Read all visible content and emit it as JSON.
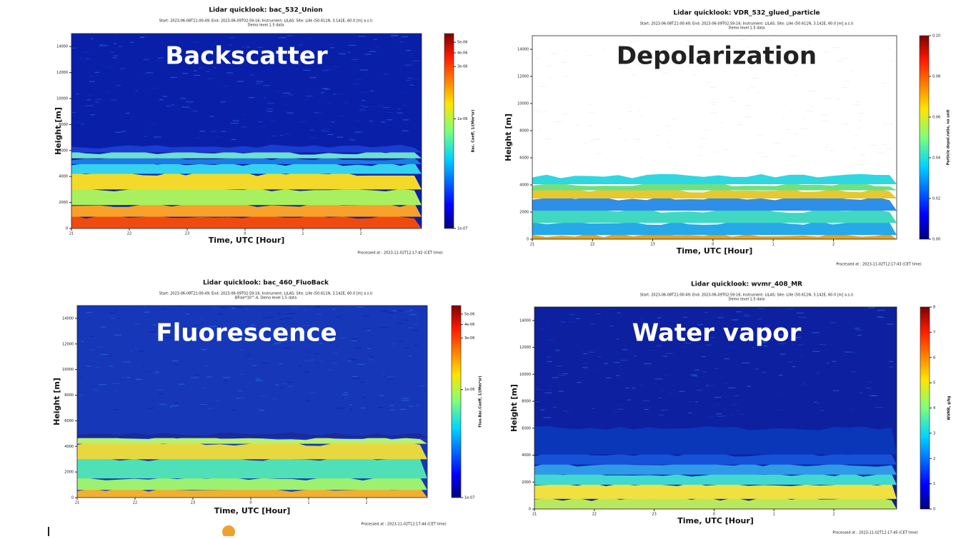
{
  "chart_data": [
    {
      "type": "heatmap",
      "title": "Lidar quicklook: bac_532_Union",
      "subtitle": [
        "Start: 2023-06-08T21:00:49; End: 2023-06-09T02:59:16; Instrument: LILAS; Site: Lille (50.611N, 3.142E, 60.0 [m] a.s.l)",
        "Demo level 1.5 data"
      ],
      "overlay": "Backscatter",
      "x_label": "Time, UTC [Hour]",
      "y_label": "Height [m]",
      "colorbar_label": "Bac. Coeff, 1/(Mm*sr)",
      "categories": [
        "21",
        "22",
        "23",
        "0",
        "1",
        "2"
      ],
      "ylim": [
        0,
        15000
      ],
      "yticks": [
        0,
        2000,
        4000,
        6000,
        8000,
        10000,
        12000,
        14000
      ],
      "clim": [
        1e-07,
        6e-06
      ],
      "cscale": "log",
      "cticks": [
        {
          "value": 1e-07,
          "label": "1e-07"
        },
        {
          "value": 1e-06,
          "label": "1e-06"
        },
        {
          "value": 3e-06,
          "label": "3e-06"
        },
        {
          "value": 4e-06,
          "label": "4e-06"
        },
        {
          "value": 5e-06,
          "label": "5e-06"
        }
      ],
      "processed": "Processed at : 2023-11-02T12:17:42 (CET time)"
    },
    {
      "type": "heatmap",
      "title": "Lidar quicklook: VDR_532_glued_particle",
      "subtitle": [
        "Start: 2023-06-08T21:00:49; End: 2023-06-09T02:59:16; Instrument: LILAS; Site: Lille (50.611N, 3.142E, 60.0 [m] a.s.l)",
        "Demo level 1.5 data"
      ],
      "overlay": "Depolarization",
      "x_label": "Time, UTC [Hour]",
      "y_label": "Height [m]",
      "colorbar_label": "Particle depol.ratio, no unit",
      "categories": [
        "21",
        "22",
        "23",
        "0",
        "1",
        "2"
      ],
      "ylim": [
        0,
        15000
      ],
      "yticks": [
        0,
        2000,
        4000,
        6000,
        8000,
        10000,
        12000,
        14000
      ],
      "clim": [
        0,
        0.1
      ],
      "cscale": "linear",
      "cticks": [
        {
          "value": 0,
          "label": "0.00"
        },
        {
          "value": 0.02,
          "label": "0.02"
        },
        {
          "value": 0.04,
          "label": "0.04"
        },
        {
          "value": 0.06,
          "label": "0.06"
        },
        {
          "value": 0.08,
          "label": "0.08"
        },
        {
          "value": 0.1,
          "label": "0.10"
        }
      ],
      "processed": "Processed at : 2023-11-02T12:17:43 (CET time)"
    },
    {
      "type": "heatmap",
      "title": "Lidar quicklook: bac_460_FluoBack",
      "subtitle": [
        "Start: 2023-06-08T21:00:49; End: 2023-06-09T02:59:16; Instrument: LILAS; Site: Lille (50.611N, 3.142E, 60.0 [m] a.s.l)",
        "BFlair*10^-4, Demo level 1.5 data"
      ],
      "overlay": "Fluorescence",
      "x_label": "Time, UTC [Hour]",
      "y_label": "Height [m]",
      "colorbar_label": "Fluo.Bac.Coeff, 1/(Mm*sr)",
      "categories": [
        "21",
        "22",
        "23",
        "0",
        "1",
        "2"
      ],
      "ylim": [
        0,
        15000
      ],
      "yticks": [
        0,
        2000,
        4000,
        6000,
        8000,
        10000,
        12000,
        14000
      ],
      "clim": [
        1e-07,
        6e-06
      ],
      "cscale": "log",
      "cticks": [
        {
          "value": 1e-07,
          "label": "1e-07"
        },
        {
          "value": 1e-06,
          "label": "1e-06"
        },
        {
          "value": 3e-06,
          "label": "3e-06"
        },
        {
          "value": 4e-06,
          "label": "4e-06"
        },
        {
          "value": 5e-06,
          "label": "5e-06"
        }
      ],
      "processed": "Processed at : 2023-11-02T12:17:44 (CET time)"
    },
    {
      "type": "heatmap",
      "title": "Lidar quicklook: wvmr_408_MR",
      "subtitle": [
        "Start: 2023-06-08T21:00:49; End: 2023-06-09T02:59:16; Instrument: LILAS; Site: Lille (50.611N, 3.142E, 60.0 [m] a.s.l)",
        "Demo level 1.5 data"
      ],
      "overlay": "Water vapor",
      "x_label": "Time, UTC [Hour]",
      "y_label": "Height [m]",
      "colorbar_label": "WVMR, g/kg",
      "categories": [
        "21",
        "22",
        "23",
        "0",
        "1",
        "2"
      ],
      "ylim": [
        0,
        15000
      ],
      "yticks": [
        0,
        2000,
        4000,
        6000,
        8000,
        10000,
        12000,
        14000
      ],
      "clim": [
        0,
        8
      ],
      "cscale": "linear",
      "cticks": [
        0,
        1,
        2,
        3,
        4,
        5,
        6,
        7,
        8
      ],
      "processed": "Processed at : 2023-11-02T12:17:45 (CET time)"
    }
  ]
}
